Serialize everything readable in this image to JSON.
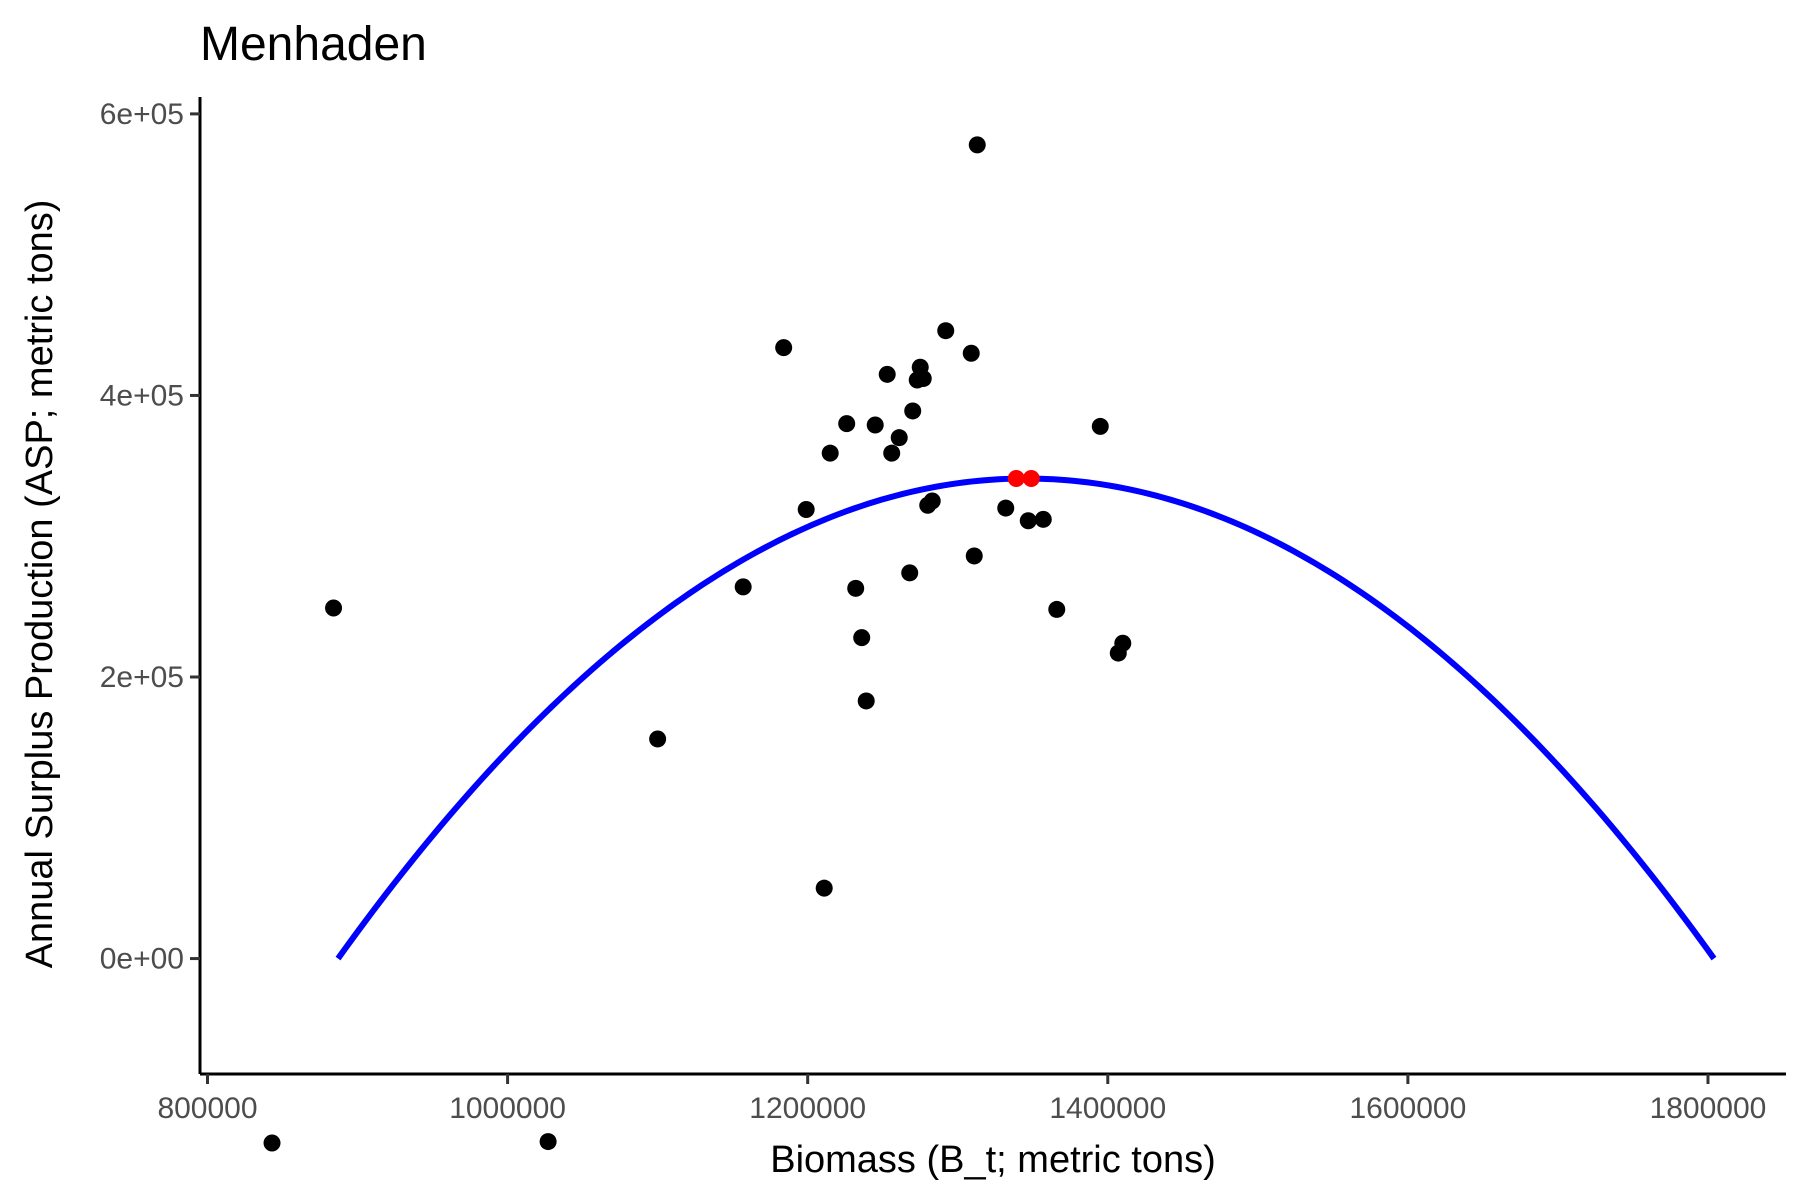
{
  "chart_data": {
    "type": "scatter",
    "title": "Menhaden",
    "xlabel": "Biomass (B_t; metric tons)",
    "ylabel": "Annual Surplus Production (ASP; metric tons)",
    "xlim": [
      795000,
      1852000
    ],
    "ylim": [
      -82000,
      612000
    ],
    "x_ticks": [
      800000,
      1000000,
      1200000,
      1400000,
      1600000,
      1800000
    ],
    "x_tick_labels": [
      "800000",
      "1000000",
      "1200000",
      "1400000",
      "1600000",
      "1800000"
    ],
    "y_ticks": [
      0,
      200000,
      400000,
      600000
    ],
    "y_tick_labels": [
      "0e+00",
      "2e+05",
      "4e+05",
      "6e+05"
    ],
    "grid": false,
    "series": [
      {
        "type": "scatter",
        "color": "#000000",
        "points": [
          {
            "x": 843000,
            "y": -131000
          },
          {
            "x": 884000,
            "y": 249000
          },
          {
            "x": 1027000,
            "y": -130000
          },
          {
            "x": 1100000,
            "y": 156000
          },
          {
            "x": 1157000,
            "y": 264000
          },
          {
            "x": 1184000,
            "y": 434000
          },
          {
            "x": 1199000,
            "y": 319000
          },
          {
            "x": 1211000,
            "y": 50000
          },
          {
            "x": 1215000,
            "y": 359000
          },
          {
            "x": 1226000,
            "y": 380000
          },
          {
            "x": 1232000,
            "y": 263000
          },
          {
            "x": 1236000,
            "y": 228000
          },
          {
            "x": 1239000,
            "y": 183000
          },
          {
            "x": 1245000,
            "y": 379000
          },
          {
            "x": 1253000,
            "y": 415000
          },
          {
            "x": 1256000,
            "y": 359000
          },
          {
            "x": 1261000,
            "y": 370000
          },
          {
            "x": 1268000,
            "y": 274000
          },
          {
            "x": 1270000,
            "y": 389000
          },
          {
            "x": 1273000,
            "y": 411000
          },
          {
            "x": 1275000,
            "y": 420000
          },
          {
            "x": 1277000,
            "y": 412000
          },
          {
            "x": 1280000,
            "y": 322000
          },
          {
            "x": 1283000,
            "y": 325000
          },
          {
            "x": 1292000,
            "y": 446000
          },
          {
            "x": 1309000,
            "y": 430000
          },
          {
            "x": 1311000,
            "y": 286000
          },
          {
            "x": 1313000,
            "y": 578000
          },
          {
            "x": 1332000,
            "y": 320000
          },
          {
            "x": 1347000,
            "y": 311000
          },
          {
            "x": 1357000,
            "y": 312000
          },
          {
            "x": 1366000,
            "y": 248000
          },
          {
            "x": 1395000,
            "y": 378000
          },
          {
            "x": 1407000,
            "y": 217000
          },
          {
            "x": 1410000,
            "y": 224000
          }
        ]
      },
      {
        "type": "scatter",
        "color": "#ff0000",
        "points": [
          {
            "x": 1339000,
            "y": 341000
          },
          {
            "x": 1349000,
            "y": 341000
          }
        ]
      },
      {
        "type": "line",
        "color": "#0000ff",
        "curve": "parabola",
        "x_start": 887000,
        "x_end": 1804000,
        "y_max": 341000,
        "y_at_ends": 0
      }
    ]
  }
}
